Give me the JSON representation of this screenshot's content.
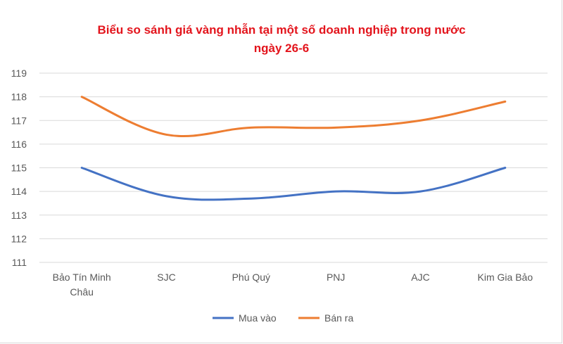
{
  "chart_data": {
    "type": "line",
    "title": "Biểu so sánh giá vàng nhẫn tại một số doanh nghiệp trong nước",
    "subtitle": "ngày 26-6",
    "categories": [
      [
        "Bảo Tín Minh",
        "Châu"
      ],
      [
        "SJC"
      ],
      [
        "Phú Quý"
      ],
      [
        "PNJ"
      ],
      [
        "AJC"
      ],
      [
        "Kim Gia Bảo"
      ]
    ],
    "series": [
      {
        "name": "Mua vào",
        "color": "#4472c4",
        "values": [
          115,
          113.8,
          113.7,
          114,
          114,
          115
        ]
      },
      {
        "name": "Bán ra",
        "color": "#ed7d31",
        "values": [
          118,
          116.4,
          116.7,
          116.7,
          117,
          117.8
        ]
      }
    ],
    "ylim": [
      111,
      119
    ],
    "yticks": [
      111,
      112,
      113,
      114,
      115,
      116,
      117,
      118,
      119
    ],
    "grid": true,
    "legend": "bottom",
    "xlabel": "",
    "ylabel": ""
  }
}
